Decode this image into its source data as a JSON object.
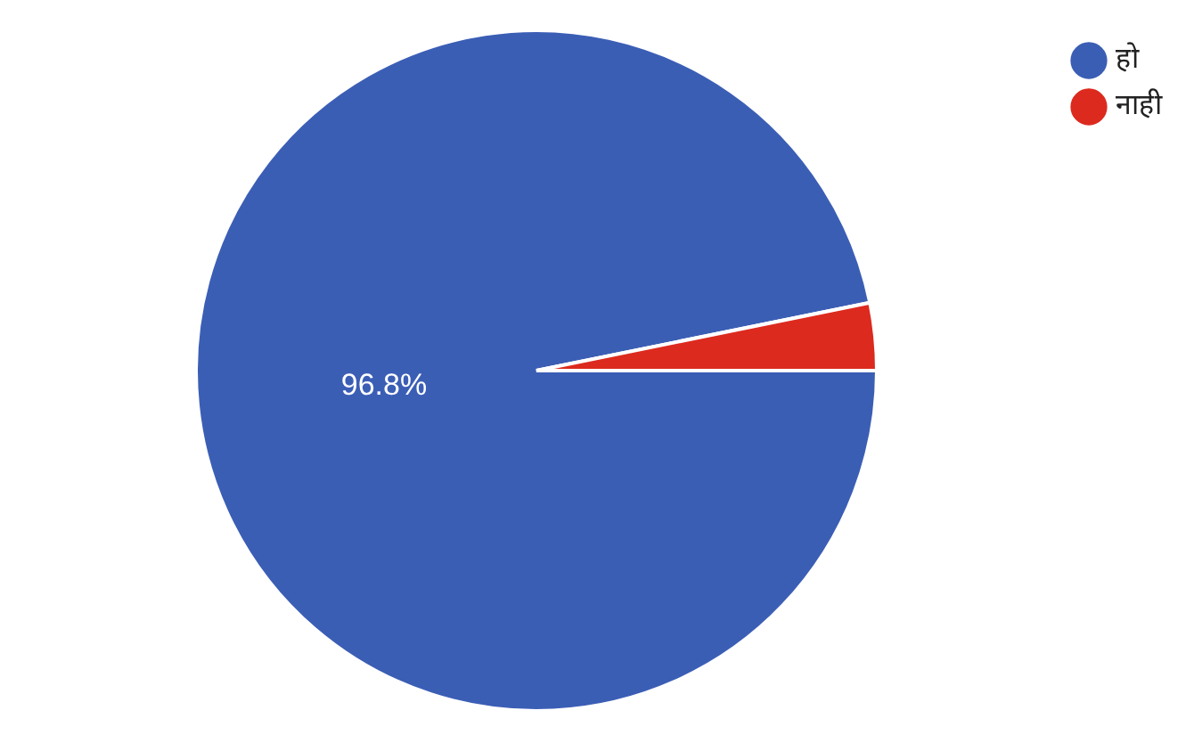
{
  "chart_data": {
    "type": "pie",
    "categories": [
      "हो",
      "नाही"
    ],
    "values": [
      96.8,
      3.2
    ],
    "colors": [
      "#3b5eb5",
      "#dc2a1e"
    ],
    "value_labels": [
      "96.8%",
      null
    ],
    "legend": "top right"
  }
}
